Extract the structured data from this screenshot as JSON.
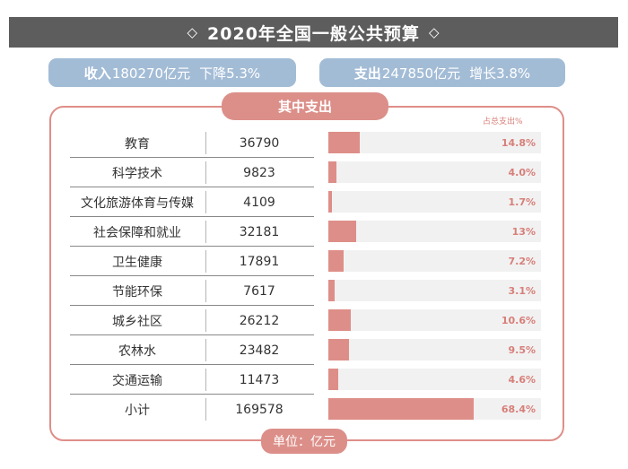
{
  "header": {
    "title": "2020年全国一般公共预算",
    "left_mark": "◇",
    "right_mark": "◇"
  },
  "summary": {
    "income": {
      "label": "收入",
      "value": "180270亿元",
      "change": "下降5.3%"
    },
    "expense": {
      "label": "支出",
      "value": "247850亿元",
      "change": "增长3.8%"
    }
  },
  "section_title": "其中支出",
  "unit_label": "单位：亿元",
  "colors": {
    "banner": "#5d5d5d",
    "pill": "#a3bcd6",
    "accent": "#de8e88",
    "track": "#f1f1f1",
    "pct_text": "#d77f79"
  },
  "chart_data": {
    "type": "bar",
    "orientation": "horizontal",
    "value_header": "占总支出%",
    "categories": [
      "教育",
      "科学技术",
      "文化旅游体育与传媒",
      "社会保障和就业",
      "卫生健康",
      "节能环保",
      "城乡社区",
      "农林水",
      "交通运输",
      "小计"
    ],
    "amounts": [
      "36790",
      "9823",
      "4109",
      "32181",
      "17891",
      "7617",
      "26212",
      "23482",
      "11473",
      "169578"
    ],
    "values": [
      14.8,
      4.0,
      1.7,
      13,
      7.2,
      3.1,
      10.6,
      9.5,
      4.6,
      68.4
    ],
    "value_labels": [
      "14.8%",
      "4.0%",
      "1.7%",
      "13%",
      "7.2%",
      "3.1%",
      "10.6%",
      "9.5%",
      "4.6%",
      "68.4%"
    ],
    "xlim": [
      0,
      100
    ]
  }
}
